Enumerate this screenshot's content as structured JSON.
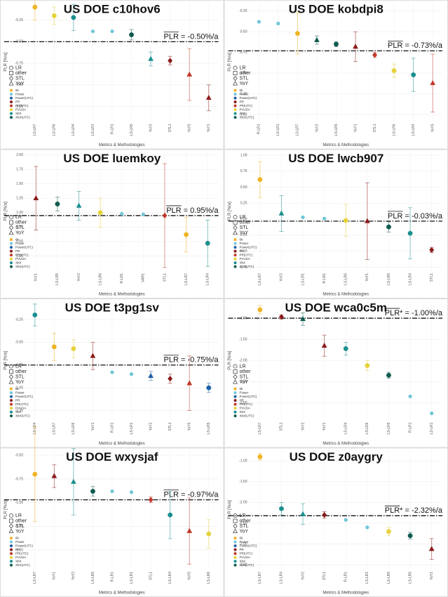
{
  "legend": {
    "shapes": [
      {
        "label": "LR",
        "marker": "circle"
      },
      {
        "label": "other",
        "marker": "square"
      },
      {
        "label": "STL",
        "marker": "diamond"
      },
      {
        "label": "YoY",
        "marker": "triangle"
      }
    ],
    "colors": [
      {
        "name": "6k",
        "color": "#f0b323"
      },
      {
        "name": "Power",
        "color": "#6ec6d8"
      },
      {
        "name": "Power(UTC)",
        "color": "#1f5fa8"
      },
      {
        "name": "PR",
        "color": "#8b1a1a"
      },
      {
        "name": "PR(UTC)",
        "color": "#c0392b"
      },
      {
        "name": "PVUSA",
        "color": "#e6d23a"
      },
      {
        "name": "XbX",
        "color": "#1a8f8f"
      },
      {
        "name": "XbX(UTC)",
        "color": "#0f5b4f"
      }
    ]
  },
  "chart_data": [
    {
      "type": "errorbar",
      "title": "US DOE c10hov6",
      "xlabel": "Metrics & Methodologies",
      "ylabel": "PLR [%/a]",
      "categories": [
        "LS-LR7",
        "LS-LR6",
        "LS-LR4",
        "LS-LR1",
        "R-LR1",
        "LS-LR5",
        "YoY2",
        "STL1",
        "YoY5",
        "YoY1"
      ],
      "values": [
        -0.1,
        -0.2,
        -0.22,
        -0.38,
        -0.38,
        -0.42,
        -0.7,
        -0.72,
        -0.88,
        -1.15
      ],
      "errors": [
        0.15,
        0.1,
        0.15,
        0,
        0,
        0.06,
        0.08,
        0.05,
        0.3,
        0.15
      ],
      "colors": [
        "#f0b323",
        "#e6d23a",
        "#1a8f8f",
        "#6ec6d8",
        "#6ec6d8",
        "#0f5b4f",
        "#1a8f8f",
        "#8b1a1a",
        "#c0392b",
        "#8b1a1a"
      ],
      "markers": [
        "circle",
        "circle",
        "circle",
        "circle",
        "circle",
        "circle",
        "triangle",
        "diamond",
        "triangle",
        "triangle"
      ],
      "reference": {
        "value": -0.5,
        "label": "PLR = -0.50%/a"
      },
      "ylim": [
        -1.42,
        -0.05
      ],
      "yticks": [
        {
          "value": -0.25,
          "label": "-0.25"
        },
        {
          "value": -0.5,
          "label": "-0.50"
        },
        {
          "value": -0.75,
          "label": "-0.75"
        },
        {
          "value": -1,
          "label": "-1.00"
        },
        {
          "value": -1.25,
          "label": "-1.25"
        }
      ],
      "grid": true
    },
    {
      "type": "errorbar",
      "title": "US DOE kobdpi8",
      "xlabel": "Metrics & Methodologies",
      "ylabel": "PLR [%/a]",
      "categories": [
        "R-LR1",
        "LS-LR1",
        "LS-LR7",
        "YoY2",
        "LS-LR5",
        "YoY1",
        "STL1",
        "LS-LR6",
        "LS-LR4",
        "YoY5"
      ],
      "values": [
        -0.38,
        -0.4,
        -0.52,
        -0.6,
        -0.65,
        -0.68,
        -0.78,
        -0.97,
        -1.02,
        -1.12
      ],
      "errors": [
        0,
        0,
        0.25,
        0.05,
        0.03,
        0.18,
        0.03,
        0.08,
        0.2,
        0.35
      ],
      "colors": [
        "#6ec6d8",
        "#6ec6d8",
        "#f0b323",
        "#0f5b4f",
        "#0f5b4f",
        "#8b1a1a",
        "#c0392b",
        "#e6d23a",
        "#1a8f8f",
        "#c0392b"
      ],
      "markers": [
        "circle",
        "circle",
        "circle",
        "triangle",
        "circle",
        "triangle",
        "diamond",
        "circle",
        "circle",
        "triangle"
      ],
      "reference": {
        "value": -0.73,
        "label": "PLR = -0.73%/a"
      },
      "ylim": [
        -1.58,
        -0.15
      ],
      "yticks": [
        {
          "value": -0.25,
          "label": "-0.25"
        },
        {
          "value": -0.5,
          "label": "-0.50"
        },
        {
          "value": -0.75,
          "label": "-0.75"
        },
        {
          "value": -1,
          "label": "-1.00"
        },
        {
          "value": -1.25,
          "label": "-1.25"
        },
        {
          "value": -1.5,
          "label": "-1.50"
        }
      ],
      "grid": true
    },
    {
      "type": "errorbar",
      "title": "US DOE luemkoy",
      "xlabel": "Metrics & Methodologies",
      "ylabel": "PLR [%/a]",
      "categories": [
        "YoY1",
        "LS-LR5",
        "YoY2",
        "LS-LR6",
        "R-LR1",
        "VAR1",
        "STL1",
        "LS-LR7",
        "LS-LR4"
      ],
      "values": [
        1.25,
        1.15,
        1.12,
        1.0,
        0.98,
        0.97,
        0.95,
        0.62,
        0.47
      ],
      "errors": [
        0.55,
        0.12,
        0.25,
        0.25,
        0,
        0,
        0.9,
        0.3,
        0.4
      ],
      "colors": [
        "#8b1a1a",
        "#0f5b4f",
        "#1a8f8f",
        "#e6d23a",
        "#6ec6d8",
        "#6ec6d8",
        "#c0392b",
        "#f0b323",
        "#1a8f8f"
      ],
      "markers": [
        "triangle",
        "circle",
        "triangle",
        "circle",
        "circle",
        "circle",
        "diamond",
        "circle",
        "circle"
      ],
      "reference": {
        "value": 0.95,
        "label": "PLR = 0.95%/a"
      },
      "ylim": [
        0.0,
        2.05
      ],
      "yticks": [
        {
          "value": 0.25,
          "label": "0.25"
        },
        {
          "value": 0.5,
          "label": "0.50"
        },
        {
          "value": 0.75,
          "label": "0.75"
        },
        {
          "value": 1,
          "label": "1.00"
        },
        {
          "value": 1.25,
          "label": "1.25"
        },
        {
          "value": 1.5,
          "label": "1.50"
        },
        {
          "value": 1.75,
          "label": "1.75"
        },
        {
          "value": 2,
          "label": "2.00"
        }
      ],
      "grid": true
    },
    {
      "type": "errorbar",
      "title": "US DOE lwcb907",
      "xlabel": "Metrics & Methodologies",
      "ylabel": "PLR [%/a]",
      "categories": [
        "LS-LR7",
        "YoY2",
        "LS-LR1",
        "R-LR1",
        "LS-LR6",
        "YoY1",
        "LS-LR5",
        "LS-LR4",
        "STL1"
      ],
      "values": [
        0.62,
        0.09,
        0.03,
        0.01,
        -0.02,
        -0.03,
        -0.12,
        -0.22,
        -0.48
      ],
      "errors": [
        0.28,
        0.28,
        0,
        0,
        0.25,
        0.6,
        0.08,
        0.4,
        0.04
      ],
      "colors": [
        "#f0b323",
        "#1a8f8f",
        "#6ec6d8",
        "#6ec6d8",
        "#e6d23a",
        "#8b1a1a",
        "#0f5b4f",
        "#1a8f8f",
        "#8b1a1a"
      ],
      "markers": [
        "circle",
        "triangle",
        "circle",
        "circle",
        "circle",
        "triangle",
        "circle",
        "circle",
        "diamond"
      ],
      "reference": {
        "value": -0.03,
        "label": "PLR = -0.03%/a"
      },
      "ylim": [
        -0.8,
        1.05
      ],
      "yticks": [
        {
          "value": -0.75,
          "label": "-0.75"
        },
        {
          "value": -0.5,
          "label": "-0.50"
        },
        {
          "value": -0.25,
          "label": "-0.25"
        },
        {
          "value": 0,
          "label": "0.00"
        },
        {
          "value": 0.25,
          "label": "0.25"
        },
        {
          "value": 0.5,
          "label": "0.50"
        },
        {
          "value": 0.75,
          "label": "0.75"
        },
        {
          "value": 1,
          "label": "1.00"
        }
      ],
      "grid": true
    },
    {
      "type": "errorbar",
      "title": "US DOE t3pg1sv",
      "xlabel": "Metrics & Methodologies",
      "ylabel": "PLR [%/a]",
      "categories": [
        "LS-LR4",
        "LS-LR7",
        "LS-LR6",
        "YoY1",
        "R-LR1",
        "LS-LR1",
        "YoY2",
        "STL1",
        "YoY5",
        "LS-LR5"
      ],
      "values": [
        -0.2,
        -0.55,
        -0.57,
        -0.65,
        -0.83,
        -0.85,
        -0.87,
        -0.9,
        -0.95,
        -1.0
      ],
      "errors": [
        0.12,
        0.15,
        0.1,
        0.15,
        0,
        0,
        0.05,
        0.05,
        0.3,
        0.05
      ],
      "colors": [
        "#1a8f8f",
        "#f0b323",
        "#e6d23a",
        "#8b1a1a",
        "#6ec6d8",
        "#6ec6d8",
        "#1f5fa8",
        "#8b1a1a",
        "#c0392b",
        "#1f5fa8"
      ],
      "markers": [
        "circle",
        "circle",
        "circle",
        "triangle",
        "circle",
        "circle",
        "triangle",
        "diamond",
        "triangle",
        "circle"
      ],
      "reference": {
        "value": -0.75,
        "label": "PLR = -0.75%/a"
      },
      "ylim": [
        -1.35,
        -0.05
      ],
      "yticks": [
        {
          "value": -0.25,
          "label": "-0.25"
        },
        {
          "value": -0.5,
          "label": "-0.50"
        },
        {
          "value": -0.75,
          "label": "-0.75"
        },
        {
          "value": -1,
          "label": "-1.00"
        },
        {
          "value": -1.25,
          "label": "-1.25"
        }
      ],
      "grid": true
    },
    {
      "type": "errorbar",
      "title": "US DOE wca0c5m",
      "xlabel": "Metrics & Methodologies",
      "ylabel": "PLR [%/a]",
      "categories": [
        "LS-LR7",
        "STL1",
        "YoY2",
        "YoY1",
        "LS-LR4",
        "LS-LR6",
        "LS-LR5",
        "R-LR1",
        "LS-LR1"
      ],
      "values": [
        -0.8,
        -0.97,
        -1.02,
        -1.65,
        -1.72,
        -2.12,
        -2.35,
        -2.85,
        -3.25
      ],
      "errors": [
        0.1,
        0.05,
        0.15,
        0.25,
        0.15,
        0.12,
        0.07,
        0,
        0
      ],
      "colors": [
        "#f0b323",
        "#8b1a1a",
        "#0f5b4f",
        "#8b1a1a",
        "#1a8f8f",
        "#e6d23a",
        "#0f5b4f",
        "#6ec6d8",
        "#6ec6d8"
      ],
      "markers": [
        "circle",
        "diamond",
        "triangle",
        "triangle",
        "circle",
        "circle",
        "circle",
        "circle",
        "circle"
      ],
      "reference": {
        "value": -1.0,
        "label": "PLR* = -1.00%/a"
      },
      "ylim": [
        -3.4,
        -0.6
      ],
      "yticks": [
        {
          "value": -1,
          "label": "-1.00"
        },
        {
          "value": -1.5,
          "label": "-1.50"
        },
        {
          "value": -2,
          "label": "-2.00"
        },
        {
          "value": -2.5,
          "label": "-2.50"
        },
        {
          "value": -3,
          "label": "-3.00"
        }
      ],
      "grid": true
    },
    {
      "type": "errorbar",
      "title": "US DOE wxysjaf",
      "xlabel": "Metrics & Methodologies",
      "ylabel": "PLR [%/a]",
      "categories": [
        "LS-LR7",
        "YoY1",
        "YoY2",
        "LS-LR5",
        "R-LR1",
        "LS-LR1",
        "STL1",
        "LS-LR4",
        "YoY5",
        "LS-LR6"
      ],
      "values": [
        -0.7,
        -0.72,
        -0.78,
        -0.88,
        -0.88,
        -0.89,
        -0.97,
        -1.13,
        -1.3,
        -1.33
      ],
      "errors": [
        0.5,
        0.12,
        0.35,
        0.05,
        0,
        0,
        0.03,
        0.25,
        0.35,
        0.15
      ],
      "colors": [
        "#f0b323",
        "#8b1a1a",
        "#1a8f8f",
        "#0f5b4f",
        "#6ec6d8",
        "#6ec6d8",
        "#c0392b",
        "#1a8f8f",
        "#c0392b",
        "#e6d23a"
      ],
      "markers": [
        "circle",
        "triangle",
        "triangle",
        "circle",
        "circle",
        "circle",
        "diamond",
        "circle",
        "triangle",
        "circle"
      ],
      "reference": {
        "value": -0.97,
        "label": "PLR = -0.97%/a"
      },
      "ylim": [
        -1.7,
        -0.45
      ],
      "yticks": [
        {
          "value": -0.5,
          "label": "-0.50"
        },
        {
          "value": -0.75,
          "label": "-0.75"
        },
        {
          "value": -1,
          "label": "-1.00"
        },
        {
          "value": -1.25,
          "label": "-1.25"
        },
        {
          "value": -1.5,
          "label": "-1.50"
        }
      ],
      "grid": true
    },
    {
      "type": "errorbar",
      "title": "US DOE z0aygry",
      "xlabel": "Metrics & Methodologies",
      "ylabel": "PLR [%/a]",
      "categories": [
        "LS-LR7",
        "LS-LR4",
        "YoY2",
        "STL1",
        "R-LR1",
        "LS-LR1",
        "LS-LR6",
        "LS-LR5",
        "YoY1"
      ],
      "values": [
        -0.9,
        -2.15,
        -2.28,
        -2.3,
        -2.42,
        -2.6,
        -2.7,
        -2.8,
        -3.12
      ],
      "errors": [
        0.08,
        0.15,
        0.25,
        0.08,
        0,
        0,
        0.1,
        0.08,
        0.25
      ],
      "colors": [
        "#f0b323",
        "#1a8f8f",
        "#1a8f8f",
        "#8b1a1a",
        "#6ec6d8",
        "#6ec6d8",
        "#e6d23a",
        "#0f5b4f",
        "#8b1a1a"
      ],
      "markers": [
        "circle",
        "circle",
        "triangle",
        "diamond",
        "circle",
        "circle",
        "circle",
        "circle",
        "triangle"
      ],
      "reference": {
        "value": -2.32,
        "label": "PLR* = -2.32%/a"
      },
      "ylim": [
        -3.6,
        -0.75
      ],
      "yticks": [
        {
          "value": -1,
          "label": "-1.00"
        },
        {
          "value": -1.5,
          "label": "-1.50"
        },
        {
          "value": -2,
          "label": "-2.00"
        },
        {
          "value": -2.5,
          "label": "-2.50"
        },
        {
          "value": -3,
          "label": "-3.00"
        },
        {
          "value": -3.5,
          "label": "-3.50"
        }
      ],
      "grid": true
    }
  ]
}
